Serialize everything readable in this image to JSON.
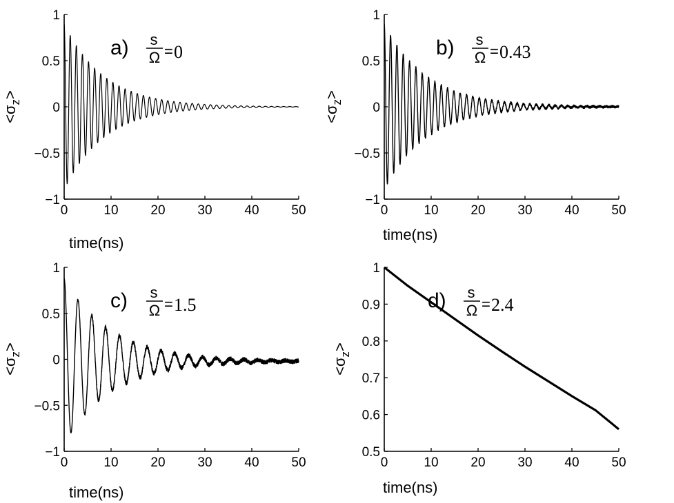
{
  "chart_data": [
    {
      "type": "line",
      "letter": "a)",
      "param_num": "s",
      "param_den": "Ω",
      "param_eq": "=",
      "param_value": "0",
      "xlabel": "time(ns)",
      "ylabel_core": "σ",
      "ylabel_sub": "z",
      "xlim": [
        0,
        50
      ],
      "ylim": [
        -1,
        1
      ],
      "xticks": [
        "0",
        "10",
        "20",
        "30",
        "40",
        "50"
      ],
      "yticks": [
        "−1",
        "−0.5",
        "0",
        "0.5",
        "1"
      ],
      "series": [
        {
          "name": "<σz>",
          "model": "damped-oscillation",
          "initial_value": 0.9,
          "oscillation_period_ns": 1.3,
          "decay_time_ns": 8.5,
          "offset": 0,
          "noise_amplitude": 0
        }
      ]
    },
    {
      "type": "line",
      "letter": "b)",
      "param_num": "s",
      "param_den": "Ω",
      "param_eq": "=",
      "param_value": "0.43",
      "xlabel": "time(ns)",
      "ylabel_core": "σ",
      "ylabel_sub": "z",
      "xlim": [
        0,
        50
      ],
      "ylim": [
        -1,
        1
      ],
      "xticks": [
        "0",
        "10",
        "20",
        "30",
        "40",
        "50"
      ],
      "yticks": [
        "−1",
        "−0.5",
        "0",
        "0.5",
        "1"
      ],
      "series": [
        {
          "name": "<σz>",
          "model": "damped-oscillation",
          "initial_value": 0.9,
          "oscillation_period_ns": 1.35,
          "decay_time_ns": 9,
          "offset": 0,
          "noise_amplitude": 0.012
        }
      ]
    },
    {
      "type": "line",
      "letter": "c)",
      "param_num": "s",
      "param_den": "Ω",
      "param_eq": "=",
      "param_value": "1.5",
      "xlabel": "time(ns)",
      "ylabel_core": "σ",
      "ylabel_sub": "z",
      "xlim": [
        0,
        50
      ],
      "ylim": [
        -1,
        1
      ],
      "xticks": [
        "0",
        "10",
        "20",
        "30",
        "40",
        "50"
      ],
      "yticks": [
        "−1",
        "−0.5",
        "0",
        "0.5",
        "1"
      ],
      "series": [
        {
          "name": "<σz>",
          "model": "damped-oscillation",
          "initial_value": 0.9,
          "oscillation_period_ns": 2.95,
          "decay_time_ns": 10,
          "offset": -0.02,
          "noise_amplitude": 0.022
        }
      ]
    },
    {
      "type": "line",
      "letter": "d)",
      "param_num": "s",
      "param_den": "Ω",
      "param_eq": "=",
      "param_value": "2.4",
      "xlabel": "time(ns)",
      "ylabel_core": "σ",
      "ylabel_sub": "z",
      "xlim": [
        0,
        50
      ],
      "ylim": [
        0.5,
        1
      ],
      "xticks": [
        "0",
        "10",
        "20",
        "30",
        "40",
        "50"
      ],
      "yticks": [
        "0.5",
        "0.6",
        "0.7",
        "0.8",
        "0.9",
        "1"
      ],
      "series": [
        {
          "name": "<σz>",
          "model": "points",
          "x": [
            0,
            5,
            10,
            15,
            20,
            25,
            30,
            35,
            40,
            45,
            50
          ],
          "y": [
            1.0,
            0.95,
            0.905,
            0.86,
            0.815,
            0.772,
            0.73,
            0.69,
            0.65,
            0.612,
            0.56
          ]
        }
      ]
    }
  ]
}
